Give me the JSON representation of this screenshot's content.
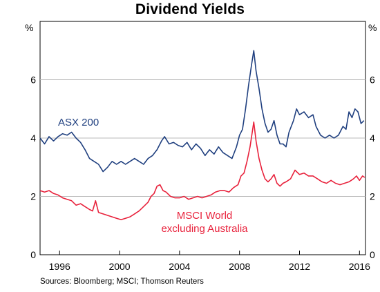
{
  "chart_data": {
    "type": "line",
    "title": "Dividend Yields",
    "y_unit": "%",
    "ylim": [
      0,
      8
    ],
    "y_ticks": [
      0,
      2,
      4,
      6
    ],
    "xlim": [
      1994.7,
      2016.4
    ],
    "x_ticks": [
      "1996",
      "2000",
      "2004",
      "2008",
      "2012",
      "2016"
    ],
    "grid": "horizontal",
    "annotations": [
      {
        "text": "ASX 200",
        "series": "ASX 200"
      },
      {
        "text": "MSCI World",
        "series": "MSCI World excluding Australia"
      },
      {
        "text": "excluding Australia",
        "series": "MSCI World excluding Australia"
      }
    ],
    "series": [
      {
        "name": "ASX 200",
        "color": "#1f3f7f",
        "points": [
          [
            1994.7,
            4.0
          ],
          [
            1995.0,
            3.8
          ],
          [
            1995.3,
            4.05
          ],
          [
            1995.6,
            3.9
          ],
          [
            1995.9,
            4.05
          ],
          [
            1996.2,
            4.15
          ],
          [
            1996.5,
            4.1
          ],
          [
            1996.8,
            4.2
          ],
          [
            1997.1,
            4.0
          ],
          [
            1997.4,
            3.85
          ],
          [
            1997.7,
            3.6
          ],
          [
            1998.0,
            3.3
          ],
          [
            1998.3,
            3.2
          ],
          [
            1998.6,
            3.1
          ],
          [
            1998.9,
            2.85
          ],
          [
            1999.2,
            3.0
          ],
          [
            1999.5,
            3.2
          ],
          [
            1999.8,
            3.1
          ],
          [
            2000.1,
            3.2
          ],
          [
            2000.4,
            3.1
          ],
          [
            2000.7,
            3.2
          ],
          [
            2001.0,
            3.3
          ],
          [
            2001.3,
            3.2
          ],
          [
            2001.6,
            3.1
          ],
          [
            2001.9,
            3.3
          ],
          [
            2002.2,
            3.4
          ],
          [
            2002.5,
            3.6
          ],
          [
            2002.8,
            3.9
          ],
          [
            2003.0,
            4.05
          ],
          [
            2003.3,
            3.8
          ],
          [
            2003.6,
            3.85
          ],
          [
            2003.9,
            3.75
          ],
          [
            2004.2,
            3.7
          ],
          [
            2004.5,
            3.85
          ],
          [
            2004.8,
            3.6
          ],
          [
            2005.1,
            3.8
          ],
          [
            2005.4,
            3.65
          ],
          [
            2005.7,
            3.4
          ],
          [
            2006.0,
            3.6
          ],
          [
            2006.3,
            3.45
          ],
          [
            2006.6,
            3.7
          ],
          [
            2006.9,
            3.5
          ],
          [
            2007.2,
            3.4
          ],
          [
            2007.5,
            3.3
          ],
          [
            2007.8,
            3.7
          ],
          [
            2008.0,
            4.1
          ],
          [
            2008.2,
            4.3
          ],
          [
            2008.4,
            5.0
          ],
          [
            2008.6,
            5.8
          ],
          [
            2008.8,
            6.5
          ],
          [
            2008.95,
            7.0
          ],
          [
            2009.1,
            6.3
          ],
          [
            2009.3,
            5.7
          ],
          [
            2009.5,
            5.0
          ],
          [
            2009.7,
            4.5
          ],
          [
            2009.9,
            4.2
          ],
          [
            2010.1,
            4.3
          ],
          [
            2010.3,
            4.6
          ],
          [
            2010.5,
            4.1
          ],
          [
            2010.7,
            3.8
          ],
          [
            2010.9,
            3.8
          ],
          [
            2011.1,
            3.7
          ],
          [
            2011.3,
            4.2
          ],
          [
            2011.6,
            4.6
          ],
          [
            2011.8,
            5.0
          ],
          [
            2012.0,
            4.8
          ],
          [
            2012.3,
            4.9
          ],
          [
            2012.6,
            4.7
          ],
          [
            2012.9,
            4.8
          ],
          [
            2013.1,
            4.4
          ],
          [
            2013.4,
            4.1
          ],
          [
            2013.7,
            4.0
          ],
          [
            2014.0,
            4.1
          ],
          [
            2014.3,
            4.0
          ],
          [
            2014.6,
            4.1
          ],
          [
            2014.9,
            4.4
          ],
          [
            2015.1,
            4.3
          ],
          [
            2015.3,
            4.9
          ],
          [
            2015.5,
            4.7
          ],
          [
            2015.7,
            5.0
          ],
          [
            2015.9,
            4.9
          ],
          [
            2016.1,
            4.5
          ],
          [
            2016.3,
            4.6
          ]
        ]
      },
      {
        "name": "MSCI World excluding Australia",
        "color": "#e8213b",
        "points": [
          [
            1994.7,
            2.2
          ],
          [
            1995.0,
            2.15
          ],
          [
            1995.3,
            2.2
          ],
          [
            1995.6,
            2.1
          ],
          [
            1995.9,
            2.05
          ],
          [
            1996.2,
            1.95
          ],
          [
            1996.5,
            1.9
          ],
          [
            1996.8,
            1.85
          ],
          [
            1997.1,
            1.7
          ],
          [
            1997.4,
            1.75
          ],
          [
            1997.7,
            1.65
          ],
          [
            1998.0,
            1.55
          ],
          [
            1998.2,
            1.5
          ],
          [
            1998.4,
            1.85
          ],
          [
            1998.6,
            1.45
          ],
          [
            1998.9,
            1.4
          ],
          [
            1999.2,
            1.35
          ],
          [
            1999.5,
            1.3
          ],
          [
            1999.8,
            1.25
          ],
          [
            2000.1,
            1.2
          ],
          [
            2000.4,
            1.25
          ],
          [
            2000.7,
            1.3
          ],
          [
            2001.0,
            1.4
          ],
          [
            2001.3,
            1.5
          ],
          [
            2001.6,
            1.65
          ],
          [
            2001.9,
            1.8
          ],
          [
            2002.1,
            2.0
          ],
          [
            2002.3,
            2.1
          ],
          [
            2002.5,
            2.35
          ],
          [
            2002.7,
            2.4
          ],
          [
            2002.9,
            2.2
          ],
          [
            2003.1,
            2.15
          ],
          [
            2003.4,
            2.0
          ],
          [
            2003.7,
            1.95
          ],
          [
            2004.0,
            1.95
          ],
          [
            2004.3,
            2.0
          ],
          [
            2004.6,
            1.9
          ],
          [
            2004.9,
            1.95
          ],
          [
            2005.2,
            2.0
          ],
          [
            2005.5,
            1.95
          ],
          [
            2005.8,
            2.0
          ],
          [
            2006.1,
            2.05
          ],
          [
            2006.4,
            2.15
          ],
          [
            2006.7,
            2.2
          ],
          [
            2007.0,
            2.2
          ],
          [
            2007.3,
            2.15
          ],
          [
            2007.6,
            2.3
          ],
          [
            2007.9,
            2.4
          ],
          [
            2008.1,
            2.7
          ],
          [
            2008.3,
            2.8
          ],
          [
            2008.5,
            3.2
          ],
          [
            2008.7,
            3.7
          ],
          [
            2008.85,
            4.2
          ],
          [
            2008.95,
            4.55
          ],
          [
            2009.1,
            3.9
          ],
          [
            2009.3,
            3.3
          ],
          [
            2009.5,
            2.9
          ],
          [
            2009.7,
            2.6
          ],
          [
            2009.9,
            2.5
          ],
          [
            2010.1,
            2.6
          ],
          [
            2010.3,
            2.75
          ],
          [
            2010.5,
            2.45
          ],
          [
            2010.7,
            2.35
          ],
          [
            2010.9,
            2.45
          ],
          [
            2011.1,
            2.5
          ],
          [
            2011.4,
            2.6
          ],
          [
            2011.7,
            2.9
          ],
          [
            2012.0,
            2.75
          ],
          [
            2012.3,
            2.8
          ],
          [
            2012.6,
            2.7
          ],
          [
            2012.9,
            2.7
          ],
          [
            2013.2,
            2.6
          ],
          [
            2013.5,
            2.5
          ],
          [
            2013.8,
            2.45
          ],
          [
            2014.1,
            2.55
          ],
          [
            2014.4,
            2.45
          ],
          [
            2014.7,
            2.4
          ],
          [
            2015.0,
            2.45
          ],
          [
            2015.3,
            2.5
          ],
          [
            2015.6,
            2.6
          ],
          [
            2015.8,
            2.7
          ],
          [
            2016.0,
            2.55
          ],
          [
            2016.2,
            2.7
          ],
          [
            2016.35,
            2.65
          ]
        ]
      }
    ]
  },
  "source": "Sources:   Bloomberg; MSCI; Thomson Reuters"
}
